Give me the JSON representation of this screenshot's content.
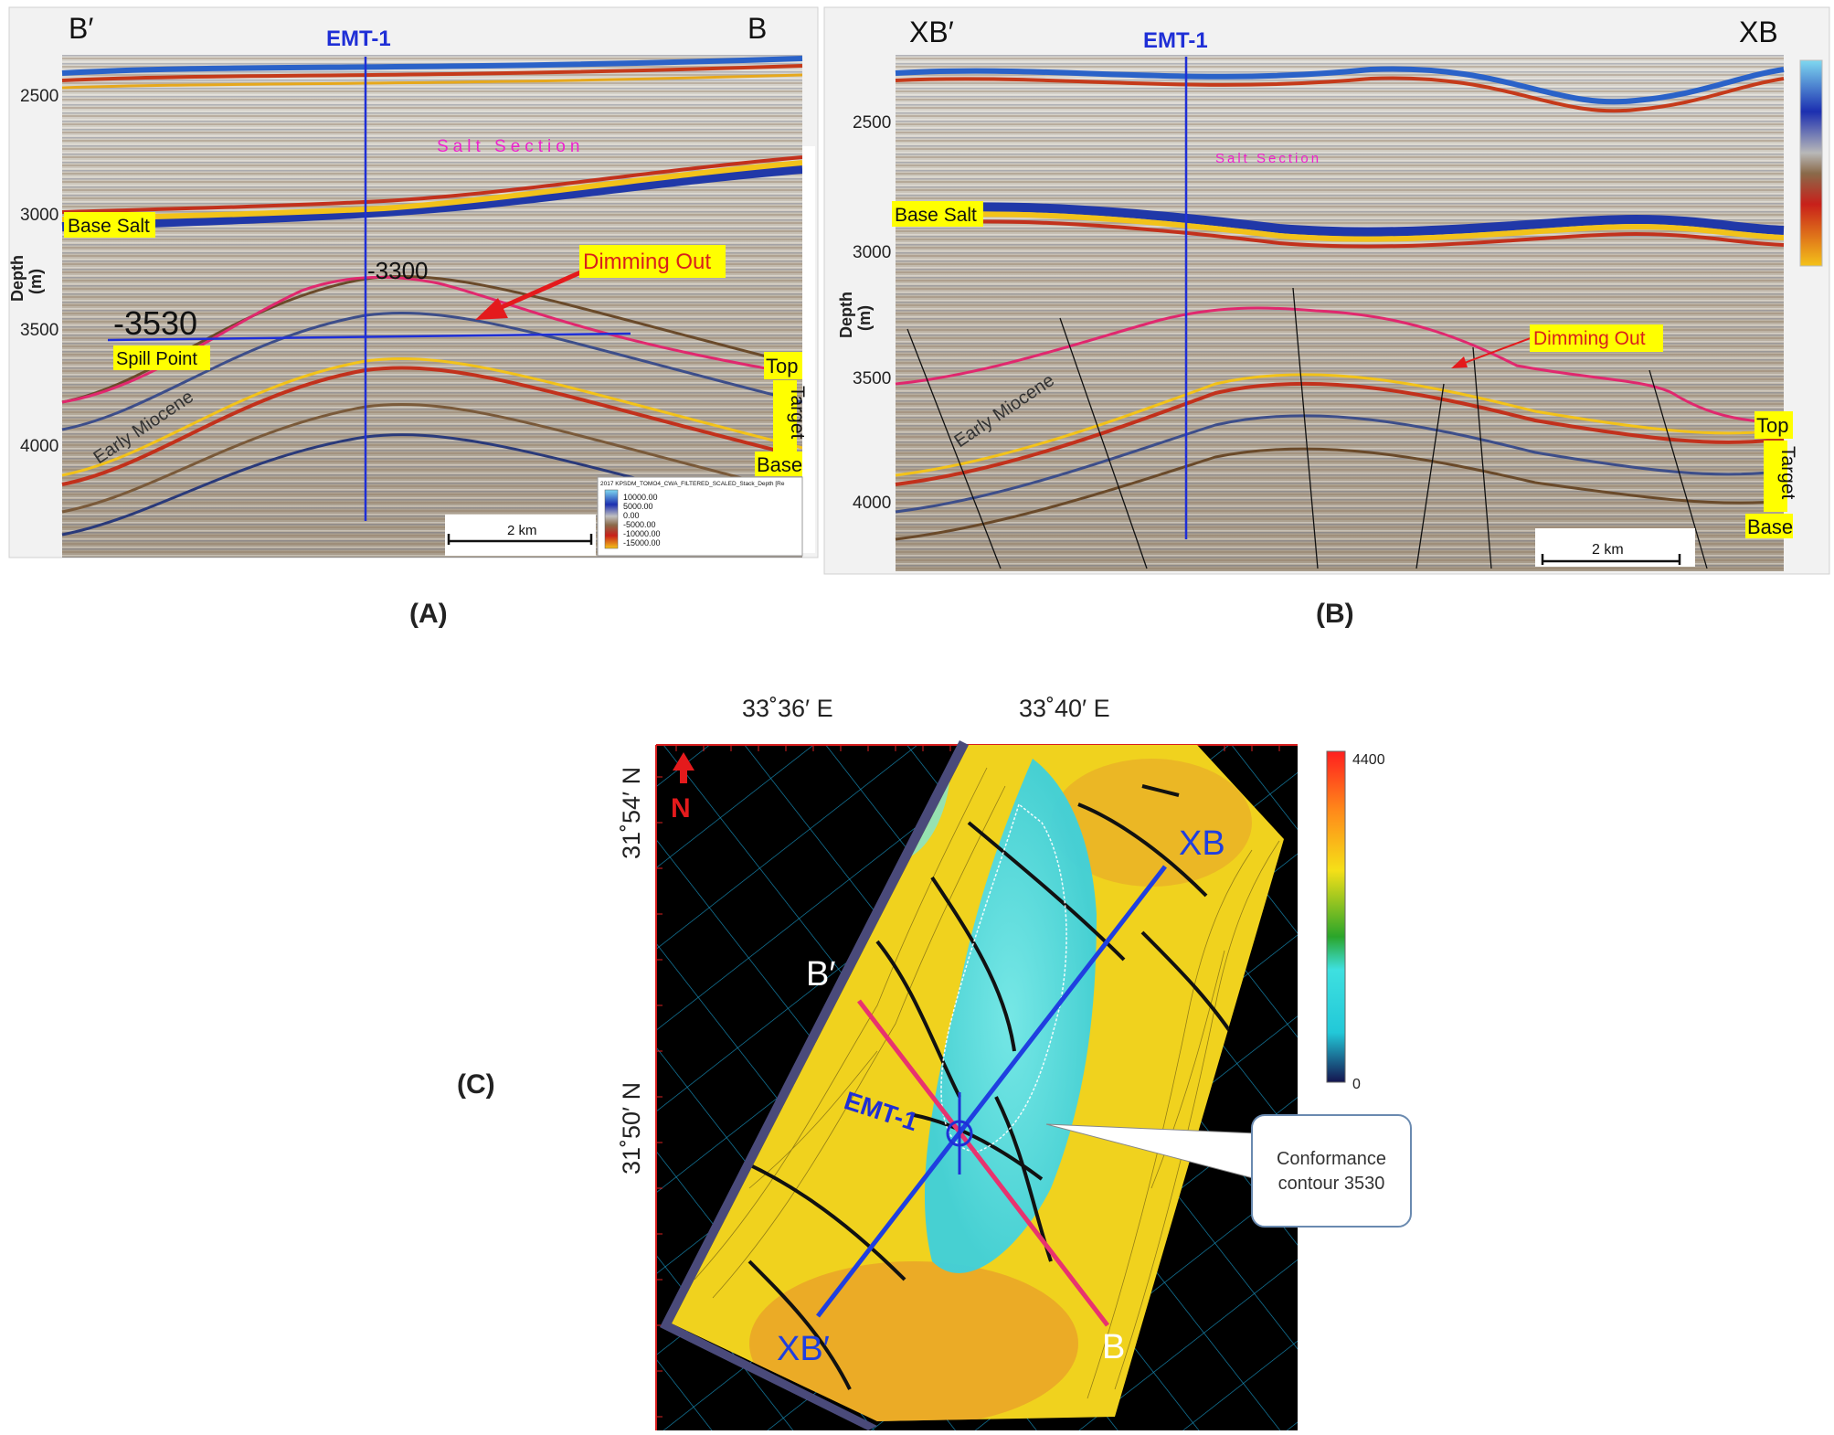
{
  "panel_a": {
    "caption": "(A)",
    "left_end": "B′",
    "right_end": "B",
    "well": "EMT-1",
    "depth_axis_label": "Depth",
    "depth_unit": "(m)",
    "depth_ticks": [
      "2500",
      "3000",
      "3500",
      "4000"
    ],
    "salt_label": "Salt Section",
    "base_salt": "Base Salt",
    "crest_depth": "-3300",
    "spill_depth": "-3530",
    "spill_point": "Spill Point",
    "dimming": "Dimming Out",
    "early_miocene": "Early Miocene",
    "top_label": "Top",
    "target_label": "Target",
    "base_label": "Base",
    "scale_bar": "2 km",
    "legend_title": "2017 KPSDM_TOMO4_CWA_FILTERED_SCALED_Stack_Depth [Re",
    "legend_values": [
      "10000.00",
      "5000.00",
      "0.00",
      "-5000.00",
      "-10000.00",
      "-15000.00"
    ]
  },
  "panel_b": {
    "caption": "(B)",
    "left_end": "XB′",
    "right_end": "XB",
    "well": "EMT-1",
    "depth_axis_label": "Depth",
    "depth_unit": "(m)",
    "depth_ticks": [
      "2500",
      "3000",
      "3500",
      "4000"
    ],
    "salt_label": "Salt Section",
    "base_salt": "Base Salt",
    "dimming": "Dimming Out",
    "early_miocene": "Early Miocene",
    "top_label": "Top",
    "target_label": "Target",
    "base_label": "Base",
    "scale_bar": "2 km"
  },
  "panel_c": {
    "caption": "(C)",
    "lon_labels": [
      "33˚36′ E",
      "33˚40′ E"
    ],
    "lat_labels": [
      "31˚54′ N",
      "31˚50′ N"
    ],
    "north": "N",
    "line_xb_end": "XB",
    "line_xb_start": "XB′",
    "line_b_start": "B′",
    "line_b_end": "B",
    "well": "EMT-1",
    "callout_line1": "Conformance",
    "callout_line2": "contour 3530",
    "colorbar_max": "4400",
    "colorbar_min": "0"
  },
  "colors": {
    "well_line": "#1f2fd6",
    "horizon_top": "#e0286e",
    "horizon_yellow": "#f2c21a",
    "label_bg": "#ffff00",
    "arrow": "#e41a1c",
    "section_b_line": "#e8336f",
    "section_xb_line": "#1f3fe0"
  }
}
